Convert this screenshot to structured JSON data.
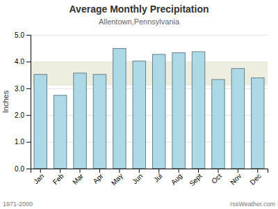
{
  "chart_data": {
    "type": "bar",
    "title": "Average Monthly Precipitation",
    "subtitle": "Allentown,Pennsylvania",
    "ylabel": "Inches",
    "categories": [
      "Jan",
      "Feb",
      "Mar",
      "Apr",
      "May",
      "Jun",
      "Jul",
      "Aug",
      "Sept",
      "Oct",
      "Nov",
      "Dec"
    ],
    "values": [
      3.52,
      2.74,
      3.57,
      3.52,
      4.49,
      4.02,
      4.27,
      4.33,
      4.37,
      3.33,
      3.74,
      3.39
    ],
    "color": "#add8e6",
    "shaded_band": [
      3.1,
      4.0
    ],
    "ylim": [
      0.0,
      5.0
    ],
    "yticks": [
      {
        "value": 0.0,
        "label": "0.0"
      },
      {
        "value": 1.0,
        "label": "1.0"
      },
      {
        "value": 2.0,
        "label": "2.0"
      },
      {
        "value": 3.0,
        "label": "3.0"
      },
      {
        "value": 4.0,
        "label": "4.0"
      },
      {
        "value": 5.0,
        "label": "5.0"
      }
    ],
    "grid": true,
    "annotations": [
      "1971-2000",
      "rssWeather.com"
    ]
  }
}
